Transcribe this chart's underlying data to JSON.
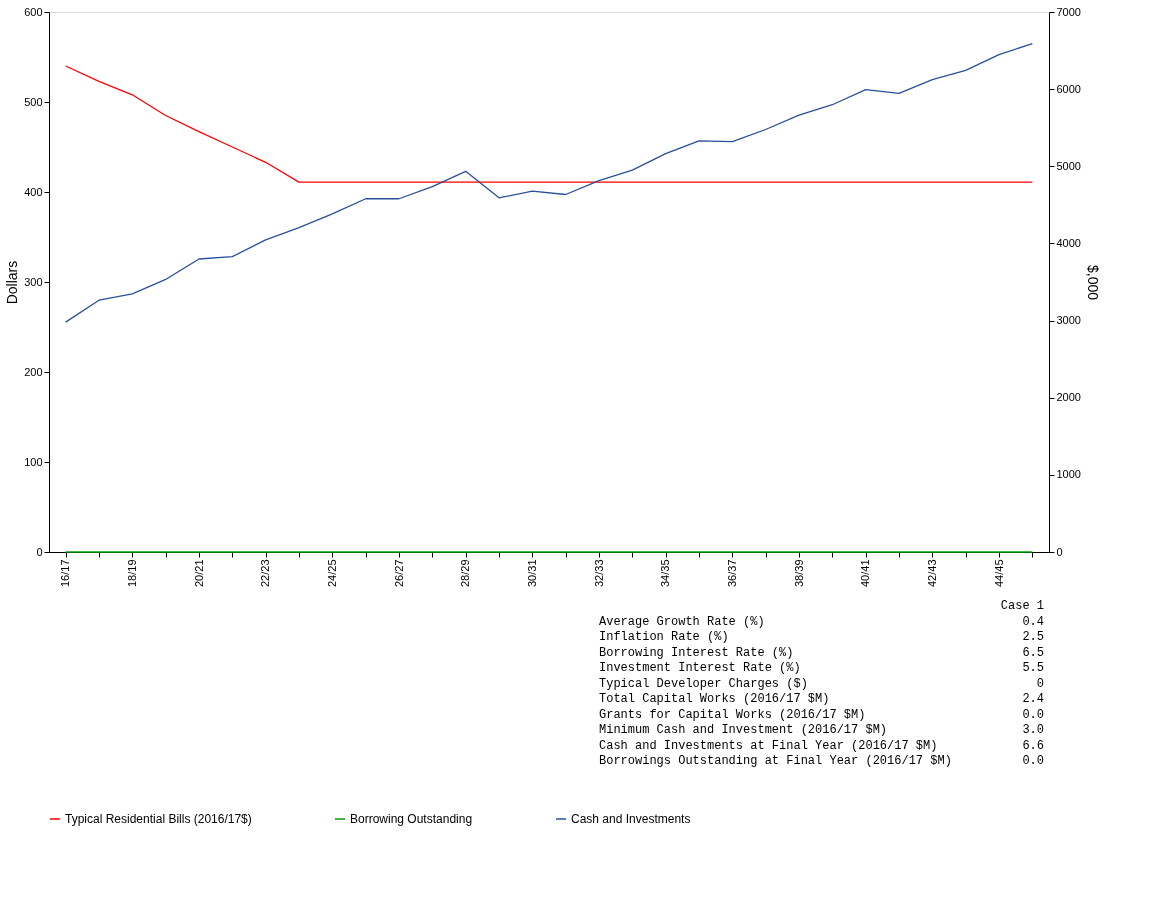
{
  "chart_data": {
    "type": "line",
    "ylabel": "Dollars",
    "y2label": "$,000",
    "categories": [
      "16/17",
      null,
      "18/19",
      null,
      "20/21",
      null,
      "22/23",
      null,
      "24/25",
      null,
      "26/27",
      null,
      "28/29",
      null,
      "30/31",
      null,
      "32/33",
      null,
      "34/35",
      null,
      "36/37",
      null,
      "38/39",
      null,
      "40/41",
      null,
      "42/43",
      null,
      "44/45",
      null
    ],
    "series": [
      {
        "name": "Typical Residential Bills (2016/17$)",
        "color": "#ff0000",
        "axis": "y",
        "values": [
          540,
          523,
          508,
          485,
          467,
          450,
          433,
          411,
          411,
          411,
          411,
          411,
          411,
          411,
          411,
          411,
          411,
          411,
          411,
          411,
          411,
          411,
          411,
          411,
          411,
          411,
          411,
          411,
          411,
          411
        ]
      },
      {
        "name": "Borrowing Outstanding",
        "color": "#00a000",
        "axis": "y",
        "values": [
          0,
          0,
          0,
          0,
          0,
          0,
          0,
          0,
          0,
          0,
          0,
          0,
          0,
          0,
          0,
          0,
          0,
          0,
          0,
          0,
          0,
          0,
          0,
          0,
          0,
          0,
          0,
          0,
          0,
          0
        ]
      },
      {
        "name": "Cash and Investments",
        "color": "#2a4f9a",
        "axis": "y2",
        "values": [
          2980,
          3264,
          3347,
          3533,
          3798,
          3829,
          4047,
          4204,
          4382,
          4579,
          4579,
          4737,
          4935,
          4591,
          4677,
          4634,
          4814,
          4951,
          5164,
          5330,
          5319,
          5477,
          5662,
          5798,
          5994,
          5946,
          6123,
          6244,
          6447,
          6591
        ]
      }
    ],
    "ylim": [
      0,
      600
    ],
    "yticks": [
      0,
      100,
      200,
      300,
      400,
      500,
      600
    ],
    "y2lim": [
      0,
      7000
    ],
    "y2ticks": [
      0,
      1000,
      2000,
      3000,
      4000,
      5000,
      6000,
      7000
    ],
    "grid": false,
    "legend": "bottom",
    "annotations": [
      "Case 1",
      "Average Growth Rate (%)",
      "0.4",
      "Inflation Rate (%)",
      "2.5",
      "Borrowing Interest Rate (%)",
      "6.5",
      "Investment Interest Rate (%)",
      "5.5",
      "Typical Developer Charges ($)",
      "0",
      "Total Capital Works (2016/17 $M)",
      "2.4",
      "Grants for Capital Works (2016/17 $M)",
      "0.0",
      "Minimum Cash and Investment (2016/17 $M)",
      "3.0",
      "Cash and Investments at Final Year (2016/17 $M)",
      "6.6",
      "Borrowings Outstanding at Final Year (2016/17 $M)",
      "0.0"
    ]
  }
}
